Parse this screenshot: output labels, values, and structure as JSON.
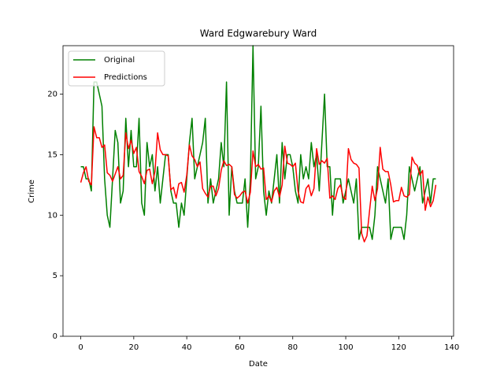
{
  "chart_data": {
    "type": "line",
    "title": "Ward Edgwarebury Ward",
    "xlabel": "Date",
    "ylabel": "Crime",
    "x": [
      0,
      1,
      2,
      3,
      4,
      5,
      6,
      7,
      8,
      9,
      10,
      11,
      12,
      13,
      14,
      15,
      16,
      17,
      18,
      19,
      20,
      21,
      22,
      23,
      24,
      25,
      26,
      27,
      28,
      29,
      30,
      31,
      32,
      33,
      34,
      35,
      36,
      37,
      38,
      39,
      40,
      41,
      42,
      43,
      44,
      45,
      46,
      47,
      48,
      49,
      50,
      51,
      52,
      53,
      54,
      55,
      56,
      57,
      58,
      59,
      60,
      61,
      62,
      63,
      64,
      65,
      66,
      67,
      68,
      69,
      70,
      71,
      72,
      73,
      74,
      75,
      76,
      77,
      78,
      79,
      80,
      81,
      82,
      83,
      84,
      85,
      86,
      87,
      88,
      89,
      90,
      91,
      92,
      93,
      94,
      95,
      96,
      97,
      98,
      99,
      100,
      101,
      102,
      103,
      104,
      105,
      106,
      107,
      108,
      109,
      110,
      111,
      112,
      113,
      114,
      115,
      116,
      117,
      118,
      119,
      120,
      121,
      122,
      123,
      124,
      125,
      126,
      127,
      128,
      129,
      130,
      131,
      132,
      133,
      134
    ],
    "series": [
      {
        "name": "Original",
        "color": "#008000",
        "values": [
          14,
          14,
          13,
          13,
          12,
          21,
          21,
          20,
          19,
          13,
          10,
          9,
          13,
          17,
          16,
          11,
          12,
          18,
          14,
          17,
          14,
          14,
          18,
          11,
          10,
          16,
          14,
          15,
          12,
          14,
          11,
          13,
          15,
          15,
          12,
          11,
          11,
          9,
          11,
          10,
          13,
          16,
          18,
          13,
          14,
          15,
          16,
          18,
          11,
          13,
          11,
          12,
          13,
          16,
          14,
          21,
          10,
          14,
          12,
          11,
          11,
          11,
          13,
          9,
          13,
          24,
          13,
          14,
          19,
          12,
          10,
          12,
          11,
          13,
          15,
          11,
          16,
          13,
          15,
          15,
          14,
          12,
          11,
          15,
          13,
          14,
          13,
          16,
          14,
          15,
          12,
          16,
          20,
          14,
          14,
          10,
          13,
          13,
          13,
          11,
          12,
          13,
          12,
          11,
          13,
          8,
          9,
          9,
          9,
          9,
          8,
          10,
          14,
          13,
          12,
          11,
          13,
          8,
          9,
          9,
          9,
          9,
          8,
          10,
          14,
          13,
          12,
          13,
          14,
          11,
          12,
          13,
          11,
          13,
          13
        ]
      },
      {
        "name": "Predictions",
        "color": "#ff0000",
        "values": [
          12.7,
          13.5,
          14,
          12.8,
          12.5,
          17.3,
          16.4,
          16.4,
          15.6,
          15.8,
          13.5,
          13.3,
          12.8,
          13.4,
          14,
          13,
          13.3,
          16.8,
          15.5,
          16.2,
          15.1,
          15.6,
          13.6,
          13.2,
          12.6,
          13.7,
          13.8,
          12.6,
          13.6,
          16.8,
          15.4,
          15.0,
          15.0,
          14.9,
          12.1,
          12.3,
          11.4,
          12.6,
          12.7,
          11.9,
          13.3,
          15.8,
          14.9,
          14.6,
          14.0,
          14.4,
          12.2,
          11.8,
          11.5,
          12.4,
          12.4,
          11.6,
          12.2,
          13.7,
          14.5,
          14.1,
          14.2,
          14.0,
          11.7,
          11.4,
          11.6,
          11.9,
          12.0,
          11.0,
          11.9,
          15.3,
          14.0,
          14.2,
          13.8,
          13.9,
          11.3,
          11.6,
          11.1,
          12.0,
          12.3,
          11.5,
          12.5,
          15.7,
          14.3,
          14.2,
          14.0,
          14.3,
          12.0,
          11.1,
          11.0,
          12.2,
          12.5,
          11.6,
          12.2,
          15.5,
          14.2,
          14.5,
          14.3,
          14.7,
          11.4,
          11.6,
          11.3,
          12.2,
          12.5,
          11.5,
          11.3,
          15.5,
          14.6,
          14.3,
          14.2,
          13.9,
          8.5,
          7.8,
          8.3,
          10.4,
          12.4,
          11.2,
          12.2,
          15.6,
          13.8,
          13.6,
          13.6,
          12.5,
          11.1,
          11.2,
          11.2,
          12.3,
          11.6,
          11.5,
          11.7,
          14.8,
          14.3,
          14.1,
          13.3,
          13.7,
          10.4,
          11.5,
          10.7,
          11.2,
          12.5
        ]
      }
    ],
    "xlim": [
      -6.7,
      140.7
    ],
    "ylim": [
      0,
      24
    ],
    "xticks": [
      0,
      20,
      40,
      60,
      80,
      100,
      120,
      140
    ],
    "yticks": [
      0,
      5,
      10,
      15,
      20
    ],
    "legend": "upper left"
  }
}
